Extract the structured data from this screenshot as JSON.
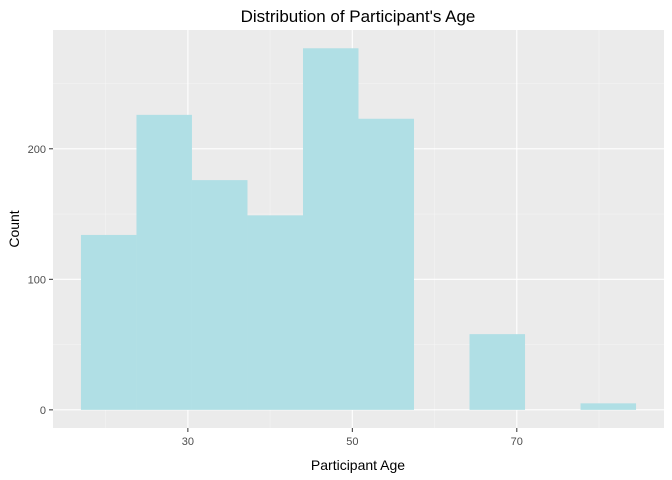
{
  "chart_data": {
    "type": "bar",
    "subtype": "histogram",
    "title": "Distribution of Participant's Age",
    "xlabel": "Participant Age",
    "ylabel": "Count",
    "bins": [
      {
        "start": 17,
        "end": 23.75,
        "count": 134
      },
      {
        "start": 23.75,
        "end": 30.5,
        "count": 226
      },
      {
        "start": 30.5,
        "end": 37.25,
        "count": 176
      },
      {
        "start": 37.25,
        "end": 44,
        "count": 149
      },
      {
        "start": 44,
        "end": 50.75,
        "count": 277
      },
      {
        "start": 50.75,
        "end": 57.5,
        "count": 223
      },
      {
        "start": 57.5,
        "end": 64.25,
        "count": 0
      },
      {
        "start": 64.25,
        "end": 71,
        "count": 58
      },
      {
        "start": 71,
        "end": 77.75,
        "count": 0
      },
      {
        "start": 77.75,
        "end": 84.5,
        "count": 5
      }
    ],
    "x_ticks": [
      30,
      50,
      70
    ],
    "y_ticks": [
      0,
      100,
      200
    ],
    "xlim": [
      13.6,
      87.9
    ],
    "ylim": [
      -13.9,
      291
    ],
    "grid": true,
    "colors": {
      "bar": "#b0dfe5",
      "panel": "#ebebeb",
      "grid_major": "#ffffff",
      "grid_minor": "#f4f4f4"
    }
  }
}
